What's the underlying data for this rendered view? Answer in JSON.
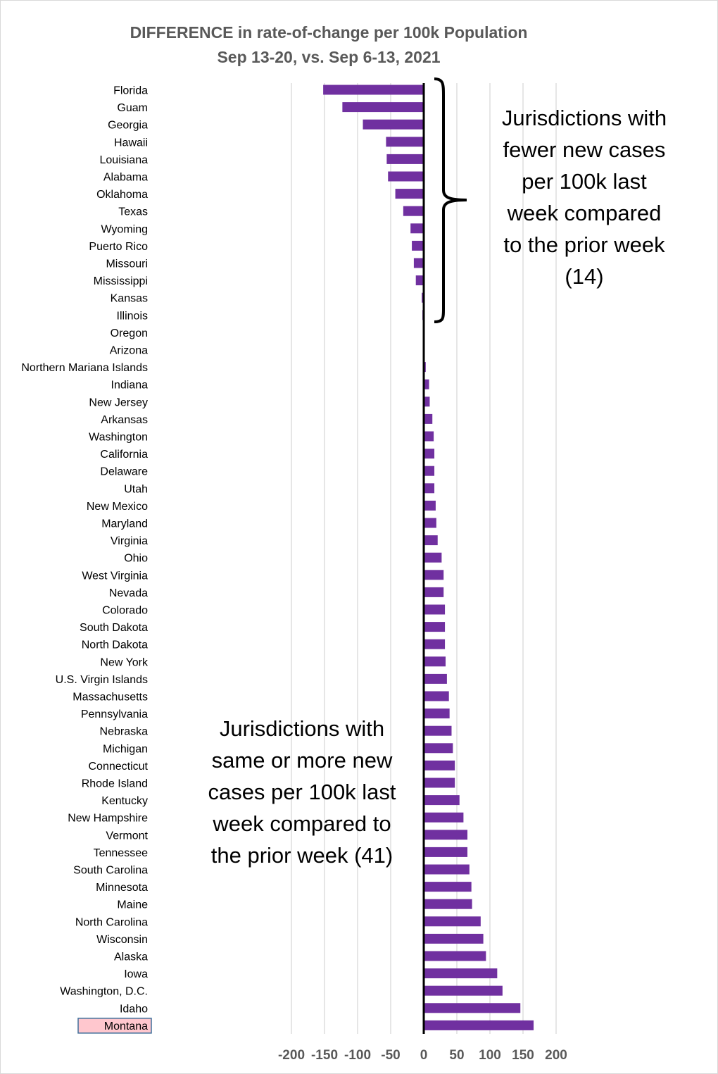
{
  "chart_data": {
    "type": "bar",
    "orientation": "horizontal",
    "title": "DIFFERENCE in rate-of-change per 100k Population",
    "subtitle": "Sep 13-20, vs. Sep 6-13, 2021",
    "xlabel": "",
    "ylabel": "",
    "xlim": [
      -200,
      200
    ],
    "xticks": [
      "-200",
      "-150",
      "-100",
      "-50",
      "0",
      "50",
      "100",
      "150",
      "200"
    ],
    "grid": "vertical",
    "bar_color": "#7030a0",
    "highlight_color": "#ffc7ce",
    "highlight_category": "Montana",
    "categories": [
      "Florida",
      "Guam",
      "Georgia",
      "Hawaii",
      "Louisiana",
      "Alabama",
      "Oklahoma",
      "Texas",
      "Wyoming",
      "Puerto Rico",
      "Missouri",
      "Mississippi",
      "Kansas",
      "Illinois",
      "Oregon",
      "Arizona",
      "Northern Mariana Islands",
      "Indiana",
      "New Jersey",
      "Arkansas",
      "Washington",
      "California",
      "Delaware",
      "Utah",
      "New Mexico",
      "Maryland",
      "Virginia",
      "Ohio",
      "West Virginia",
      "Nevada",
      "Colorado",
      "South Dakota",
      "North Dakota",
      "New York",
      "U.S. Virgin Islands",
      "Massachusetts",
      "Pennsylvania",
      "Nebraska",
      "Michigan",
      "Connecticut",
      "Rhode Island",
      "Kentucky",
      "New Hampshire",
      "Vermont",
      "Tennessee",
      "South Carolina",
      "Minnesota",
      "Maine",
      "North Carolina",
      "Wisconsin",
      "Alaska",
      "Iowa",
      "Washington, D.C.",
      "Idaho",
      "Montana"
    ],
    "values": [
      -152,
      -123,
      -92,
      -57,
      -56,
      -54,
      -43,
      -31,
      -20,
      -18,
      -15,
      -12,
      -3,
      -2,
      0,
      1,
      3,
      8,
      9,
      13,
      15,
      16,
      16,
      16,
      18,
      19,
      21,
      27,
      30,
      30,
      32,
      32,
      32,
      33,
      35,
      38,
      39,
      42,
      44,
      47,
      47,
      54,
      60,
      66,
      66,
      69,
      72,
      73,
      86,
      90,
      94,
      111,
      119,
      146,
      166
    ]
  },
  "annotations": {
    "fewer": "Jurisdictions with\nfewer new cases\nper 100k last\nweek compared\nto the prior week\n(14)",
    "more": "Jurisdictions with\nsame or more new\ncases per 100k last\nweek compared to\nthe prior week (41)"
  }
}
